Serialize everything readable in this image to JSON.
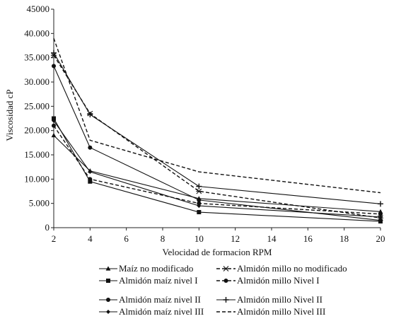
{
  "chart_data": {
    "type": "line",
    "title": "",
    "xlabel": "Velocidad de formacion RPM",
    "ylabel": "Viscosidad cP",
    "x": [
      2,
      4,
      10,
      20
    ],
    "xlim": [
      2,
      20
    ],
    "xticks": [
      "2",
      "4",
      "6",
      "8",
      "10",
      "12",
      "14",
      "16",
      "18",
      "20"
    ],
    "ylim": [
      0,
      45000
    ],
    "yticks": [
      "0",
      "5.000",
      "10.000",
      "15.000",
      "20.000",
      "25.000",
      "30.000",
      "35.000",
      "40.000",
      "45000"
    ],
    "grid": false,
    "legend_position": "bottom",
    "series": [
      {
        "name": "Maíz no modificado",
        "values": [
          19000,
          11700,
          6000,
          3300
        ],
        "color": "#111111",
        "style": "solid",
        "marker": "triangle"
      },
      {
        "name": "Almidón millo no modificado",
        "values": [
          35500,
          23500,
          7500,
          2000
        ],
        "color": "#111111",
        "style": "dashed",
        "marker": "x"
      },
      {
        "name": "Almidón maíz nivel I",
        "values": [
          22500,
          9500,
          3200,
          1300
        ],
        "color": "#111111",
        "style": "solid",
        "marker": "square"
      },
      {
        "name": "Almidón millo Nivel I",
        "values": [
          21000,
          10000,
          5000,
          2800
        ],
        "color": "#111111",
        "style": "dashed",
        "marker": "circle"
      },
      {
        "name": "Almidón maíz nivel II",
        "values": [
          33300,
          16500,
          5700,
          1500
        ],
        "color": "#111111",
        "style": "solid",
        "marker": "circle"
      },
      {
        "name": "Almidón millo Nivel II",
        "values": [
          36000,
          23300,
          8500,
          4900
        ],
        "color": "#111111",
        "style": "solid",
        "marker": "plus"
      },
      {
        "name": "Almidón maíz nivel III",
        "values": [
          22000,
          11500,
          4500,
          2200
        ],
        "color": "#111111",
        "style": "solid",
        "marker": "diamond"
      },
      {
        "name": "Almidón millo Nivel III",
        "values": [
          39000,
          18000,
          11500,
          7200
        ],
        "color": "#111111",
        "style": "dashed",
        "marker": "none"
      }
    ]
  }
}
